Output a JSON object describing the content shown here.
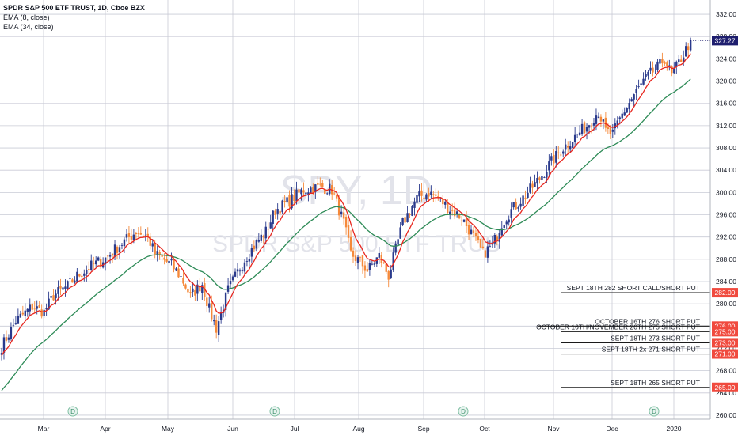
{
  "header": {
    "instrument": "SPDR S&P 500 ETF TRUST, 1D, Cboe BZX",
    "indicators": [
      "EMA (8, close)",
      "EMA (34, close)"
    ]
  },
  "watermark": {
    "symbol": "SPY, 1D",
    "name": "SPDR S&P 500 ETF TRUS"
  },
  "colors": {
    "up": "#2a3a8c",
    "down": "#f5893a",
    "ema8": "#e8271f",
    "ema34": "#2e8b57",
    "tag_bg": "#f04a3e",
    "last_tag_bg": "#1e1e6e",
    "grid": "#c9cbd6"
  },
  "chart_data": {
    "type": "candlestick",
    "y_axis": {
      "ticks": [
        332.0,
        328.0,
        324.0,
        320.0,
        316.0,
        312.0,
        308.0,
        304.0,
        300.0,
        296.0,
        292.0,
        288.0,
        284.0,
        280.0,
        276.0,
        272.0,
        268.0,
        264.0,
        260.0
      ],
      "range": [
        259,
        334
      ]
    },
    "x_axis": {
      "labels": [
        "Mar",
        "Apr",
        "May",
        "Jun",
        "Jul",
        "Aug",
        "Sep",
        "Oct",
        "Nov",
        "Dec",
        "2020"
      ]
    },
    "last_price": "327.27",
    "price_levels": [
      {
        "label": "SEPT 18TH 282 SHORT CALL/SHORT PUT",
        "value": 282.0,
        "tag": "282.00"
      },
      {
        "label": "OCTOBER 16TH 276 SHORT PUT",
        "value": 276.0,
        "tag": "276.00"
      },
      {
        "label": "OCTOBER 16TH/NOVEMBER 20TH 275 SHORT PUT",
        "value": 275.0,
        "tag": "275.00"
      },
      {
        "label": "SEPT 18TH 273 SHORT PUT",
        "value": 273.0,
        "tag": "273.00"
      },
      {
        "label": "SEPT 18TH 2x 271 SHORT PUT",
        "value": 271.0,
        "tag": "271.00"
      },
      {
        "label": "SEPT 18TH 265 SHORT PUT",
        "value": 265.0,
        "tag": "265.00"
      }
    ],
    "dividend_markers": [
      "D",
      "D",
      "D",
      "D"
    ],
    "close_anchors": [
      [
        0,
        272.3
      ],
      [
        6,
        276.9
      ],
      [
        13,
        279.5
      ],
      [
        18,
        278.5
      ],
      [
        22,
        281.5
      ],
      [
        28,
        283.2
      ],
      [
        32,
        285.0
      ],
      [
        38,
        286.8
      ],
      [
        44,
        288.2
      ],
      [
        50,
        290.5
      ],
      [
        57,
        293.0
      ],
      [
        62,
        292.0
      ],
      [
        65,
        289.0
      ],
      [
        72,
        287.0
      ],
      [
        76,
        284.8
      ],
      [
        80,
        281.5
      ],
      [
        85,
        283.6
      ],
      [
        88,
        279.0
      ],
      [
        91,
        275.6
      ],
      [
        96,
        282.5
      ],
      [
        103,
        288.0
      ],
      [
        108,
        291.0
      ],
      [
        112,
        293.0
      ],
      [
        116,
        296.8
      ],
      [
        122,
        298.5
      ],
      [
        128,
        300.5
      ],
      [
        135,
        301.0
      ],
      [
        140,
        300.5
      ],
      [
        145,
        294.5
      ],
      [
        148,
        289.0
      ],
      [
        152,
        287.5
      ],
      [
        155,
        286.0
      ],
      [
        160,
        288.6
      ],
      [
        164,
        285.0
      ],
      [
        170,
        294.5
      ],
      [
        176,
        299.0
      ],
      [
        181,
        300.0
      ],
      [
        185,
        299.0
      ],
      [
        190,
        297.0
      ],
      [
        195,
        295.5
      ],
      [
        200,
        292.0
      ],
      [
        204,
        289.0
      ],
      [
        208,
        290.5
      ],
      [
        212,
        294.5
      ],
      [
        216,
        296.8
      ],
      [
        222,
        299.5
      ],
      [
        228,
        302.5
      ],
      [
        233,
        305.5
      ],
      [
        238,
        308.0
      ],
      [
        243,
        310.0
      ],
      [
        248,
        312.0
      ],
      [
        253,
        314.5
      ],
      [
        256,
        311.0
      ],
      [
        259,
        310.5
      ],
      [
        263,
        314.0
      ],
      [
        268,
        317.5
      ],
      [
        273,
        320.5
      ],
      [
        278,
        322.5
      ],
      [
        281,
        324.0
      ],
      [
        284,
        321.0
      ],
      [
        288,
        324.0
      ],
      [
        292,
        327.3
      ]
    ],
    "ema8_start": 270.5,
    "ema34_start": 264.0
  }
}
